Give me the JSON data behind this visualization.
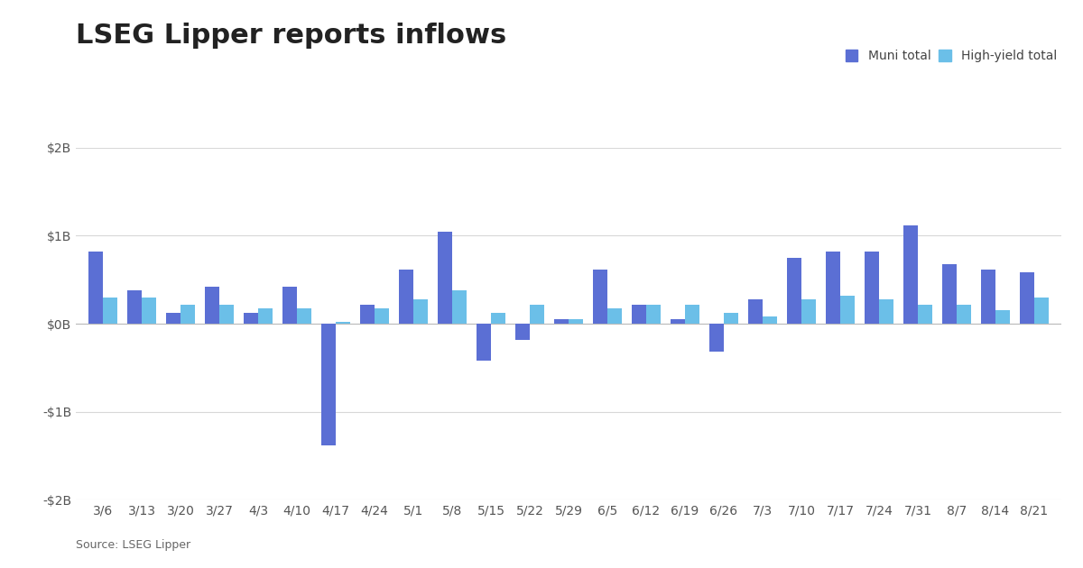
{
  "title": "LSEG Lipper reports inflows",
  "source": "Source: LSEG Lipper",
  "categories": [
    "3/6",
    "3/13",
    "3/20",
    "3/27",
    "4/3",
    "4/10",
    "4/17",
    "4/24",
    "5/1",
    "5/8",
    "5/15",
    "5/22",
    "5/29",
    "6/5",
    "6/12",
    "6/19",
    "6/26",
    "7/3",
    "7/10",
    "7/17",
    "7/24",
    "7/31",
    "8/7",
    "8/14",
    "8/21"
  ],
  "muni_total": [
    0.82,
    0.38,
    0.12,
    0.42,
    0.12,
    0.42,
    -1.38,
    0.22,
    0.62,
    1.05,
    -0.42,
    -0.18,
    0.05,
    0.62,
    0.22,
    0.05,
    -0.32,
    0.28,
    0.75,
    0.82,
    0.82,
    1.12,
    0.68,
    0.62,
    0.58
  ],
  "hy_total": [
    0.3,
    0.3,
    0.22,
    0.22,
    0.18,
    0.18,
    0.02,
    0.18,
    0.28,
    0.38,
    0.12,
    0.22,
    0.05,
    0.18,
    0.22,
    0.22,
    0.12,
    0.08,
    0.28,
    0.32,
    0.28,
    0.22,
    0.22,
    0.15,
    0.3
  ],
  "muni_color": "#5b6fd4",
  "hy_color": "#6bbfe8",
  "ylim": [
    -2.0,
    2.0
  ],
  "yticks": [
    -2.0,
    -1.0,
    0.0,
    1.0,
    2.0
  ],
  "ytick_labels": [
    "-$2B",
    "-$1B",
    "$0B",
    "$1B",
    "$2B"
  ],
  "background_color": "#ffffff",
  "grid_color": "#d8d8d8",
  "title_fontsize": 22,
  "axis_fontsize": 10,
  "legend_fontsize": 10,
  "bar_width": 0.38
}
